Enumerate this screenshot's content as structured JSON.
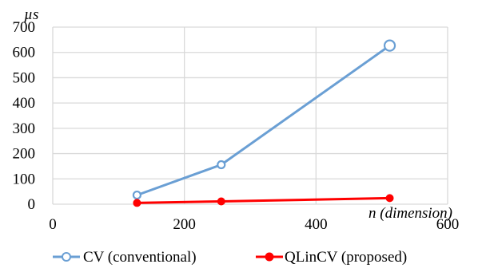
{
  "chart_data": {
    "type": "line",
    "x_unit_label": "n (dimension)",
    "y_unit_label": "µs",
    "xlim": [
      0,
      600
    ],
    "ylim": [
      0,
      700
    ],
    "x_ticks": [
      0,
      200,
      400,
      600
    ],
    "y_ticks": [
      0,
      100,
      200,
      300,
      400,
      500,
      600,
      700
    ],
    "grid": true,
    "legend_position": "bottom",
    "series": [
      {
        "name": "CV (conventional)",
        "color": "#6a9fd4",
        "marker": "open-circle",
        "x": [
          128,
          256,
          512
        ],
        "y": [
          36,
          156,
          627
        ]
      },
      {
        "name": "QLinCV (proposed)",
        "color": "#ff0000",
        "marker": "filled-circle",
        "x": [
          128,
          256,
          512
        ],
        "y": [
          5,
          11,
          24
        ]
      }
    ]
  }
}
